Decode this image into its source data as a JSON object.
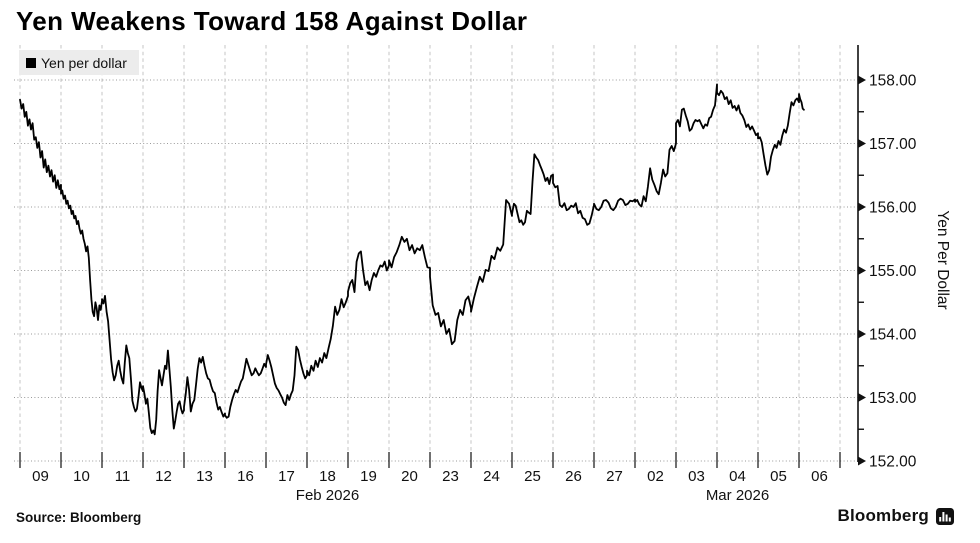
{
  "header": {
    "title": "Yen Weakens Toward 158 Against Dollar"
  },
  "legend": {
    "label": "Yen per dollar",
    "swatch_color": "#000000"
  },
  "footer": {
    "source": "Source: Bloomberg",
    "brand": "Bloomberg"
  },
  "colors": {
    "line": "#000000",
    "h_gridline": "#9a9a9a",
    "v_gridline": "#c4c4c4",
    "axis": "#111111",
    "legend_bg": "#ececec"
  },
  "chart_data": {
    "type": "line",
    "title": "Yen Weakens Toward 158 Against Dollar",
    "series_name": "Yen per dollar",
    "xlabel": "",
    "ylabel": "Yen Per Dollar",
    "ylim": [
      152,
      158
    ],
    "y_ticks": [
      152,
      153,
      154,
      155,
      156,
      157,
      158
    ],
    "y_tick_labels": [
      "152.00",
      "153.00",
      "154.00",
      "155.00",
      "156.00",
      "157.00",
      "158.00"
    ],
    "y_minor_ticks": [
      152.5,
      153.5,
      154.5,
      155.5,
      156.5,
      157.5
    ],
    "grid": true,
    "legend_position": "top-left",
    "x_categories": [
      "09",
      "10",
      "11",
      "12",
      "13",
      "16",
      "17",
      "18",
      "19",
      "20",
      "23",
      "24",
      "25",
      "26",
      "27",
      "02",
      "03",
      "04",
      "05",
      "06"
    ],
    "month_labels": [
      {
        "text": "Feb 2026",
        "day_index": 7.5
      },
      {
        "text": "Mar 2026",
        "day_index": 17.5
      }
    ],
    "last_day_fraction": 0.12,
    "values_by_day": [
      [
        157.69,
        157.55,
        157.62,
        157.42,
        157.5,
        157.28,
        157.38,
        157.22,
        157.32,
        157.06,
        157.1,
        156.93,
        157.02,
        156.78,
        156.88,
        156.62,
        156.75,
        156.55,
        156.65,
        156.48,
        156.58,
        156.4,
        156.5,
        156.3,
        156.42,
        156.28,
        156.35
      ],
      [
        156.21,
        156.26,
        156.13,
        156.18,
        156.05,
        156.1,
        155.98,
        156.02,
        155.89,
        155.94,
        155.82,
        155.86,
        155.73,
        155.78,
        155.66,
        155.58,
        155.63,
        155.5,
        155.42,
        155.3,
        155.38,
        155.2,
        154.85,
        154.55,
        154.35,
        154.28,
        154.5,
        154.4,
        154.22,
        154.45,
        154.38,
        154.52
      ],
      [
        154.55,
        154.48,
        154.6,
        154.35,
        154.2,
        153.9,
        153.6,
        153.4,
        153.27,
        153.35,
        153.5,
        153.58,
        153.42,
        153.3,
        153.22,
        153.55,
        153.82,
        153.7,
        153.62,
        153.3,
        152.95,
        152.85,
        152.78,
        152.82,
        153.0,
        153.24,
        153.15,
        153.1
      ],
      [
        153.18,
        153.05,
        152.9,
        152.98,
        152.75,
        152.52,
        152.44,
        152.48,
        152.42,
        152.65,
        153.1,
        153.43,
        153.3,
        153.19,
        153.35,
        153.5,
        153.45,
        153.74,
        153.45,
        153.17,
        152.8,
        152.51,
        152.63,
        152.78,
        152.9,
        152.94,
        152.82,
        152.75,
        152.8
      ],
      [
        152.85,
        153.05,
        153.32,
        153.12,
        152.78,
        152.9,
        152.96,
        153.2,
        153.45,
        153.62,
        153.55,
        153.64,
        153.5,
        153.38,
        153.3,
        153.28,
        153.18,
        153.1,
        153.07,
        152.92,
        152.81,
        152.85,
        152.77,
        152.7,
        152.75
      ],
      [
        152.72,
        152.68,
        152.7,
        152.85,
        152.96,
        153.05,
        153.12,
        153.08,
        153.17,
        153.25,
        153.3,
        153.45,
        153.61,
        153.52,
        153.43,
        153.35,
        153.38,
        153.46,
        153.4,
        153.35,
        153.38,
        153.45,
        153.53,
        153.48
      ],
      [
        153.52,
        153.67,
        153.58,
        153.48,
        153.35,
        153.22,
        153.15,
        153.11,
        153.05,
        153.0,
        152.92,
        152.88,
        153.04,
        152.96,
        153.05,
        153.11,
        153.35,
        153.8,
        153.75,
        153.6,
        153.48,
        153.38,
        153.3,
        153.35
      ],
      [
        153.42,
        153.35,
        153.5,
        153.42,
        153.58,
        153.48,
        153.62,
        153.55,
        153.7,
        153.62,
        153.78,
        153.92,
        154.13,
        154.43,
        154.3,
        154.38,
        154.55,
        154.42,
        154.5,
        154.6
      ],
      [
        154.67,
        154.8,
        154.85,
        154.66,
        155.14,
        155.27,
        155.3,
        155.0,
        154.77,
        154.83,
        154.69,
        154.85,
        154.96,
        154.9,
        155.0,
        155.08,
        155.06,
        155.14,
        155.0,
        155.08
      ],
      [
        155.16,
        155.05,
        155.21,
        155.29,
        155.4,
        155.53,
        155.45,
        155.5,
        155.32,
        155.4,
        155.27,
        155.35,
        155.32,
        155.4,
        155.21,
        155.05,
        155.04
      ],
      [
        154.9,
        154.45,
        154.3,
        154.33,
        154.12,
        154.22,
        154.0,
        154.08,
        153.84,
        153.89,
        154.22,
        154.38,
        154.3,
        154.53,
        154.59,
        154.41
      ],
      [
        154.35,
        154.56,
        154.74,
        154.9,
        154.82,
        155.01,
        154.99,
        155.23,
        155.18,
        155.36,
        155.31,
        155.41,
        156.11,
        156.05,
        155.86
      ],
      [
        155.89,
        156.05,
        156.02,
        155.89,
        155.76,
        155.79,
        155.72,
        155.76,
        155.94,
        155.91,
        155.89,
        156.4,
        156.83,
        156.78,
        156.74,
        156.66,
        156.59,
        156.51,
        156.41,
        156.46,
        156.36,
        156.49,
        156.51
      ],
      [
        156.38,
        156.31,
        156.33,
        156.03,
        156.0,
        156.06,
        155.95,
        155.97,
        156.02,
        156.0,
        156.06,
        155.9,
        155.94,
        155.83,
        155.81,
        155.72,
        155.74,
        155.87,
        156.03
      ],
      [
        156.05,
        155.97,
        155.95,
        156.0,
        156.1,
        156.11,
        156.07,
        155.98,
        155.95,
        156.0,
        156.1,
        156.13,
        156.11,
        156.03,
        156.05,
        156.1,
        156.09,
        156.12
      ],
      [
        156.08,
        156.11,
        156.04,
        156.01,
        156.17,
        156.09,
        156.32,
        156.61,
        156.43,
        156.35,
        156.25,
        156.2,
        156.38,
        156.59,
        156.48,
        156.53,
        156.9,
        156.96,
        156.88,
        157.0
      ],
      [
        157.32,
        157.37,
        157.27,
        157.53,
        157.55,
        157.44,
        157.35,
        157.2,
        157.23,
        157.32,
        157.37,
        157.35,
        157.37,
        157.3,
        157.24,
        157.3,
        157.28,
        157.4,
        157.42,
        157.53,
        157.6,
        157.93
      ],
      [
        157.8,
        157.76,
        157.83,
        157.79,
        157.7,
        157.73,
        157.62,
        157.68,
        157.56,
        157.59,
        157.52,
        157.6,
        157.48,
        157.44,
        157.37,
        157.26,
        157.3,
        157.22,
        157.27,
        157.2,
        157.13,
        157.16
      ],
      [
        157.08,
        157.1,
        157.02,
        156.83,
        156.65,
        156.51,
        156.58,
        156.79,
        156.9,
        156.98,
        156.93,
        157.04,
        156.98,
        157.12,
        157.22,
        157.17,
        157.28,
        157.48,
        157.65,
        157.6,
        157.68,
        157.71,
        157.65
      ],
      [
        157.78,
        157.7,
        157.65,
        157.55,
        157.53
      ]
    ]
  }
}
